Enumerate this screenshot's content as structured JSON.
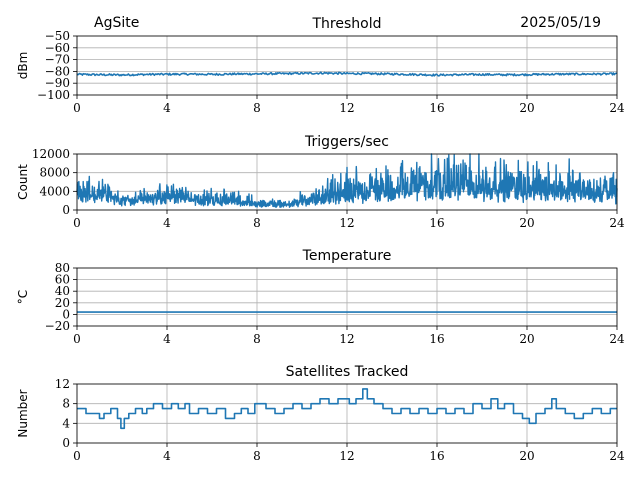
{
  "header": {
    "site": "AgSite",
    "date": "2025/05/19"
  },
  "line_color": "#1f77b4",
  "chart_data": [
    {
      "type": "line",
      "title": "Threshold",
      "ylabel": "dBm",
      "xlim": [
        0,
        24
      ],
      "ylim": [
        -100,
        -50
      ],
      "xticks": [
        0,
        4,
        8,
        12,
        16,
        20,
        24
      ],
      "yticks": [
        -100,
        -90,
        -80,
        -70,
        -60,
        -50
      ],
      "ytick_labels": [
        "−100",
        "−90",
        "−80",
        "−70",
        "−60",
        "−50"
      ],
      "grid": true,
      "series": [
        {
          "values_by_hour": [
            -82.5,
            -82.8,
            -83.0,
            -82.6,
            -82.4,
            -82.3,
            -82.5,
            -82.2,
            -82.1,
            -81.9,
            -81.7,
            -81.4,
            -81.8,
            -81.9,
            -82.2,
            -82.6,
            -83.1,
            -82.8,
            -82.6,
            -82.9,
            -82.7,
            -82.4,
            -82.3,
            -82.2,
            -82.1
          ],
          "noise": 0.8
        }
      ]
    },
    {
      "type": "line",
      "title": "Triggers/sec",
      "ylabel": "Count",
      "xlim": [
        0,
        24
      ],
      "ylim": [
        0,
        12000
      ],
      "xticks": [
        0,
        4,
        8,
        12,
        16,
        20,
        24
      ],
      "yticks": [
        0,
        4000,
        8000,
        12000
      ],
      "ytick_labels": [
        "0",
        "4000",
        "8000",
        "12000"
      ],
      "grid": true,
      "series": [
        {
          "baseline_by_hour": [
            3000,
            3400,
            2100,
            2400,
            2800,
            2300,
            2100,
            1900,
            1300,
            1100,
            1600,
            2500,
            3200,
            3600,
            3800,
            3900,
            4200,
            4600,
            4300,
            4100,
            3900,
            3700,
            3600,
            3300,
            3100
          ],
          "spread_by_hour": [
            3800,
            3600,
            1200,
            2000,
            3000,
            2400,
            2200,
            2000,
            1200,
            900,
            1600,
            3200,
            4200,
            4800,
            5400,
            5800,
            6400,
            6800,
            6400,
            6000,
            5600,
            5800,
            5400,
            4600,
            3800
          ]
        }
      ]
    },
    {
      "type": "line",
      "title": "Temperature",
      "ylabel": "°C",
      "xlim": [
        0,
        24
      ],
      "ylim": [
        -20,
        80
      ],
      "xticks": [
        0,
        4,
        8,
        12,
        16,
        20,
        24
      ],
      "yticks": [
        -20,
        0,
        20,
        40,
        60,
        80
      ],
      "ytick_labels": [
        "−20",
        "0",
        "20",
        "40",
        "60",
        "80"
      ],
      "grid": true,
      "series": [
        {
          "values_by_hour": [
            4,
            4,
            4,
            4,
            4,
            4,
            4,
            4,
            4,
            4,
            4,
            4,
            4,
            4,
            4,
            4,
            4,
            4,
            4,
            4,
            4,
            4,
            4,
            4,
            4
          ]
        }
      ]
    },
    {
      "type": "line",
      "title": "Satellites Tracked",
      "ylabel": "Number",
      "xlim": [
        0,
        24
      ],
      "ylim": [
        0,
        12
      ],
      "xticks": [
        0,
        4,
        8,
        12,
        16,
        20,
        24
      ],
      "yticks": [
        0,
        4,
        8,
        12
      ],
      "ytick_labels": [
        "0",
        "4",
        "8",
        "12"
      ],
      "grid": true,
      "series": [
        {
          "step_points": [
            [
              0,
              7
            ],
            [
              0.4,
              6
            ],
            [
              1.0,
              5
            ],
            [
              1.2,
              6
            ],
            [
              1.5,
              7
            ],
            [
              1.8,
              5
            ],
            [
              1.95,
              3
            ],
            [
              2.1,
              5
            ],
            [
              2.3,
              6
            ],
            [
              2.6,
              7
            ],
            [
              2.9,
              6
            ],
            [
              3.1,
              7
            ],
            [
              3.4,
              8
            ],
            [
              3.8,
              7
            ],
            [
              4.2,
              8
            ],
            [
              4.5,
              7
            ],
            [
              4.8,
              8
            ],
            [
              5.0,
              6
            ],
            [
              5.4,
              7
            ],
            [
              5.8,
              6
            ],
            [
              6.2,
              7
            ],
            [
              6.6,
              5
            ],
            [
              7.0,
              6
            ],
            [
              7.3,
              7
            ],
            [
              7.6,
              6
            ],
            [
              7.9,
              8
            ],
            [
              8.4,
              7
            ],
            [
              8.8,
              6
            ],
            [
              9.2,
              7
            ],
            [
              9.6,
              8
            ],
            [
              10.0,
              7
            ],
            [
              10.4,
              8
            ],
            [
              10.8,
              9
            ],
            [
              11.2,
              8
            ],
            [
              11.6,
              9
            ],
            [
              12.1,
              8
            ],
            [
              12.4,
              9
            ],
            [
              12.7,
              11
            ],
            [
              12.9,
              9
            ],
            [
              13.2,
              8
            ],
            [
              13.6,
              7
            ],
            [
              14.0,
              6
            ],
            [
              14.4,
              7
            ],
            [
              14.8,
              6
            ],
            [
              15.2,
              7
            ],
            [
              15.6,
              6
            ],
            [
              16.0,
              7
            ],
            [
              16.4,
              6
            ],
            [
              16.8,
              7
            ],
            [
              17.2,
              6
            ],
            [
              17.6,
              8
            ],
            [
              18.0,
              7
            ],
            [
              18.4,
              9
            ],
            [
              18.7,
              7
            ],
            [
              19.0,
              8
            ],
            [
              19.4,
              6
            ],
            [
              19.8,
              5
            ],
            [
              20.1,
              4
            ],
            [
              20.4,
              6
            ],
            [
              20.8,
              7
            ],
            [
              21.1,
              9
            ],
            [
              21.3,
              7
            ],
            [
              21.7,
              6
            ],
            [
              22.1,
              5
            ],
            [
              22.5,
              6
            ],
            [
              22.9,
              7
            ],
            [
              23.3,
              6
            ],
            [
              23.7,
              7
            ],
            [
              24,
              7
            ]
          ]
        }
      ]
    }
  ]
}
